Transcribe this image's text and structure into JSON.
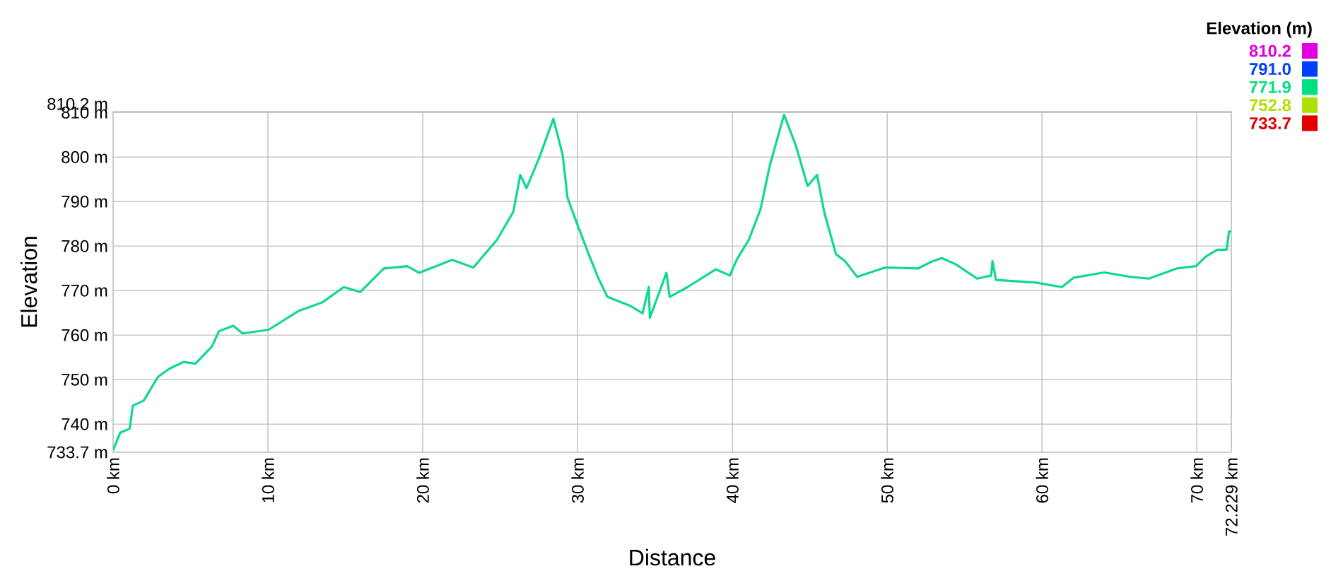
{
  "chart_data": {
    "type": "line",
    "xlabel": "Distance",
    "ylabel": "Elevation",
    "x": [
      0,
      0.46,
      1.07,
      1.28,
      1.98,
      2.89,
      3.65,
      4.56,
      5.32,
      6.39,
      6.84,
      7.76,
      8.36,
      10.04,
      12.01,
      13.53,
      14.9,
      15.97,
      17.49,
      19.0,
      19.77,
      21.9,
      23.27,
      24.79,
      25.85,
      26.3,
      26.7,
      27.53,
      28.44,
      29.04,
      29.35,
      29.96,
      30.72,
      31.33,
      31.93,
      33.45,
      34.2,
      34.6,
      34.67,
      35.74,
      35.95,
      37.1,
      38.93,
      39.84,
      40.3,
      41.06,
      41.82,
      42.43,
      43.34,
      44.1,
      44.86,
      45.47,
      45.93,
      46.69,
      47.29,
      48.06,
      49.88,
      52.0,
      52.92,
      53.53,
      54.44,
      55.81,
      56.72,
      56.8,
      57.03,
      59.6,
      61.28,
      62.04,
      64.02,
      65.69,
      66.9,
      68.73,
      69.95,
      70.56,
      71.32,
      71.93,
      72.08,
      72.229
    ],
    "series": [
      {
        "color": "#10d890",
        "values": [
          734.2,
          738.1,
          739.0,
          744.2,
          745.3,
          750.6,
          752.5,
          754.0,
          753.6,
          757.5,
          760.9,
          762.1,
          760.4,
          761.2,
          765.5,
          767.4,
          770.8,
          769.7,
          775.0,
          775.5,
          774.0,
          776.9,
          775.2,
          781.4,
          787.7,
          796.0,
          793.0,
          799.9,
          808.6,
          800.5,
          790.9,
          785.1,
          778.2,
          772.9,
          768.6,
          766.5,
          764.9,
          770.8,
          763.9,
          774.0,
          768.6,
          770.8,
          774.8,
          773.4,
          777.1,
          781.4,
          788.3,
          798.3,
          809.5,
          802.6,
          793.5,
          796.0,
          787.7,
          778.2,
          776.6,
          773.1,
          775.2,
          775.0,
          776.6,
          777.3,
          775.9,
          772.7,
          773.4,
          776.6,
          772.4,
          771.8,
          770.8,
          772.9,
          774.1,
          773.1,
          772.7,
          775.0,
          775.5,
          777.6,
          779.2,
          779.2,
          783.3,
          783.3
        ]
      }
    ],
    "annotations": [
      "Elevation (m)",
      "810.2",
      "791.0",
      "771.9",
      "752.8",
      "733.7"
    ],
    "xlim": [
      0,
      72.229
    ],
    "ylim": [
      733.7,
      810.2
    ],
    "xticks": [
      {
        "value": 0,
        "label": "0 km"
      },
      {
        "value": 10,
        "label": "10 km"
      },
      {
        "value": 20,
        "label": "20 km"
      },
      {
        "value": 30,
        "label": "30 km"
      },
      {
        "value": 40,
        "label": "40 km"
      },
      {
        "value": 50,
        "label": "50 km"
      },
      {
        "value": 60,
        "label": "60 km"
      },
      {
        "value": 70,
        "label": "70 km"
      },
      {
        "value": 72.229,
        "label": "72.229 km"
      }
    ],
    "yticks": [
      {
        "value": 733.7,
        "label": "733.7 m"
      },
      {
        "value": 740,
        "label": "740 m"
      },
      {
        "value": 750,
        "label": "750 m"
      },
      {
        "value": 760,
        "label": "760 m"
      },
      {
        "value": 770,
        "label": "770 m"
      },
      {
        "value": 780,
        "label": "780 m"
      },
      {
        "value": 790,
        "label": "790 m"
      },
      {
        "value": 800,
        "label": "800 m"
      },
      {
        "value": 810,
        "label": "810 m"
      },
      {
        "value": 810.2,
        "label": "810.2 m"
      }
    ],
    "grid": true,
    "line_style": "solid",
    "marker": "none"
  }
}
